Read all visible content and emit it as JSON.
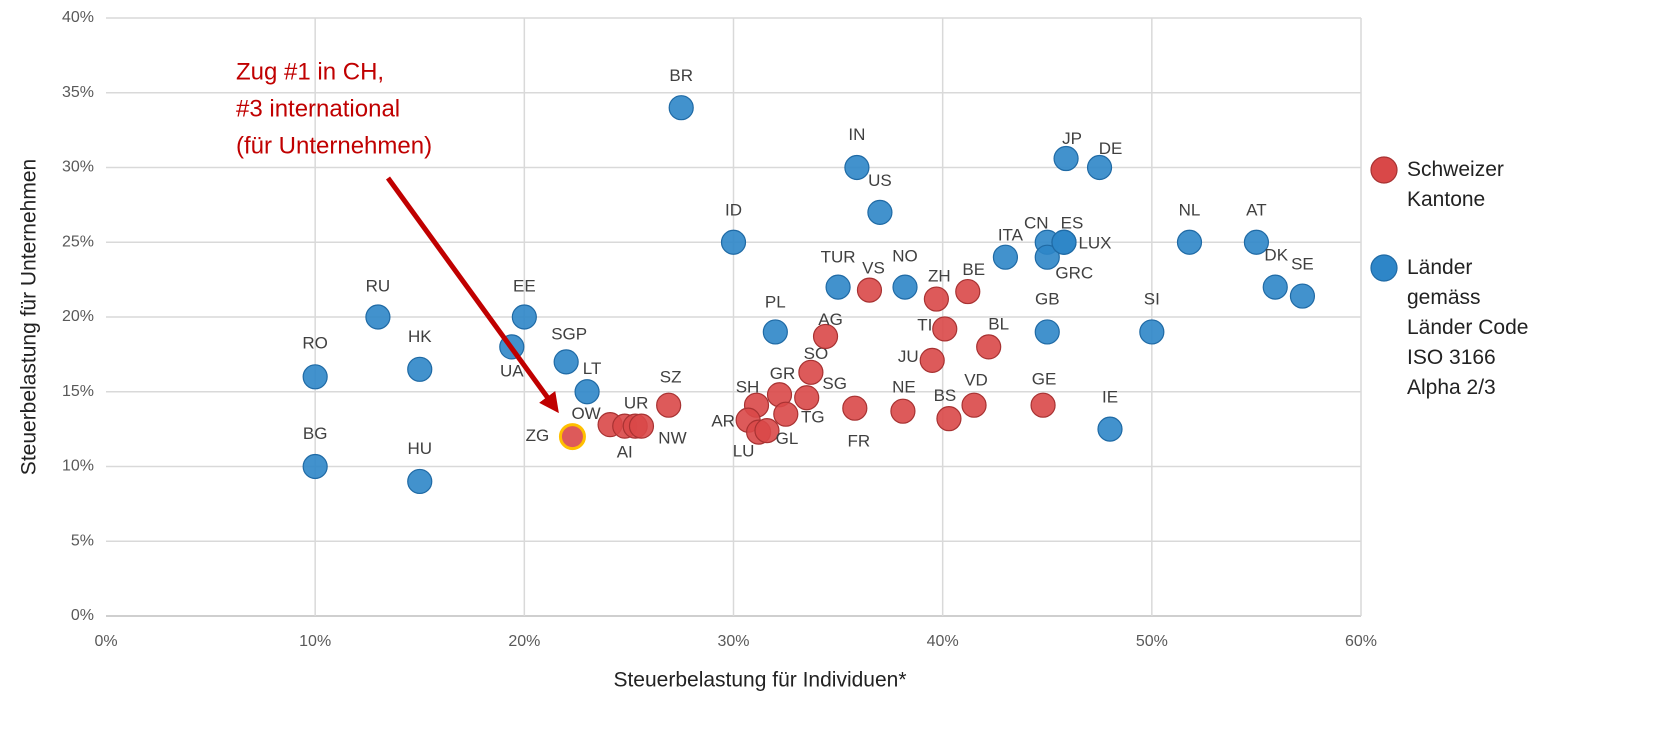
{
  "chart_data": {
    "type": "scatter",
    "x_label": "Steuerbelastung für Individuen*",
    "y_label": "Steuerbelastung für Unternehmen",
    "xlim": [
      0,
      60
    ],
    "ylim": [
      0,
      40
    ],
    "xticks": [
      {
        "value": 0,
        "label": "0%"
      },
      {
        "value": 10,
        "label": "10%"
      },
      {
        "value": 20,
        "label": "20%"
      },
      {
        "value": 30,
        "label": "30%"
      },
      {
        "value": 40,
        "label": "40%"
      },
      {
        "value": 50,
        "label": "50%"
      },
      {
        "value": 60,
        "label": "60%"
      }
    ],
    "yticks": [
      {
        "value": 0,
        "label": "0%"
      },
      {
        "value": 5,
        "label": "5%"
      },
      {
        "value": 10,
        "label": "10%"
      },
      {
        "value": 15,
        "label": "15%"
      },
      {
        "value": 20,
        "label": "20%"
      },
      {
        "value": 25,
        "label": "25%"
      },
      {
        "value": 30,
        "label": "30%"
      },
      {
        "value": 35,
        "label": "35%"
      },
      {
        "value": 40,
        "label": "40%"
      }
    ],
    "grid": true,
    "legend": "right",
    "series": [
      {
        "name": "Länder gemäss Länder Code ISO 3166 Alpha 2/3",
        "color": "#2e86c8",
        "labels": [
          "RO",
          "BG",
          "RU",
          "HK",
          "HU",
          "UA",
          "EE",
          "SGP",
          "LT",
          "BR",
          "ID",
          "PL",
          "TUR",
          "IN",
          "US",
          "NO",
          "ITA",
          "CN",
          "GRC",
          "GB",
          "ES",
          "LUX",
          "JP",
          "IE",
          "DE",
          "SI",
          "NL",
          "AT",
          "DK",
          "SE"
        ],
        "x": [
          10,
          10,
          13,
          15,
          15,
          19.4,
          20,
          22,
          23,
          27.5,
          30,
          32,
          35,
          35.9,
          37,
          38.2,
          43,
          45,
          45,
          45,
          45.8,
          45.8,
          45.9,
          48,
          47.5,
          50,
          51.8,
          55,
          55.9,
          57.2
        ],
        "y": [
          16,
          10,
          20,
          16.5,
          9,
          18,
          20,
          17,
          15,
          34,
          25,
          19,
          22,
          30,
          27,
          22,
          24,
          25,
          24,
          19,
          25,
          25,
          30.6,
          12.5,
          30,
          19,
          25,
          25,
          22,
          21.4
        ]
      },
      {
        "name": "Schweizer Kantone",
        "color": "#d94848",
        "labels": [
          "ZG",
          "OW",
          "AI",
          "UR",
          "NW",
          "SZ",
          "SH",
          "AR",
          "LU",
          "GL",
          "GR",
          "TG",
          "SG",
          "SO",
          "AG",
          "FR",
          "VS",
          "NE",
          "JU",
          "ZH",
          "TI",
          "BS",
          "BE",
          "VD",
          "BL",
          "GE"
        ],
        "x": [
          22.3,
          24.1,
          24.8,
          25.3,
          25.6,
          26.9,
          31.1,
          30.7,
          31.2,
          31.6,
          32.2,
          32.5,
          33.5,
          33.7,
          34.4,
          35.8,
          36.5,
          38.1,
          39.5,
          39.7,
          40.1,
          40.3,
          41.2,
          41.5,
          42.2,
          44.8
        ],
        "y": [
          12,
          12.8,
          12.7,
          12.7,
          12.7,
          14.1,
          14.1,
          13.1,
          12.3,
          12.4,
          14.8,
          13.5,
          14.6,
          16.3,
          18.7,
          13.9,
          21.8,
          13.7,
          17.1,
          21.2,
          19.2,
          13.2,
          21.7,
          14.1,
          18,
          14.1
        ],
        "highlight": {
          "index": 0,
          "color": "#ffc000"
        }
      }
    ],
    "annotation": {
      "text": [
        "Zug #1 in CH,",
        "#3 international",
        "(für Unternehmen)"
      ],
      "color": "#c00000"
    }
  }
}
